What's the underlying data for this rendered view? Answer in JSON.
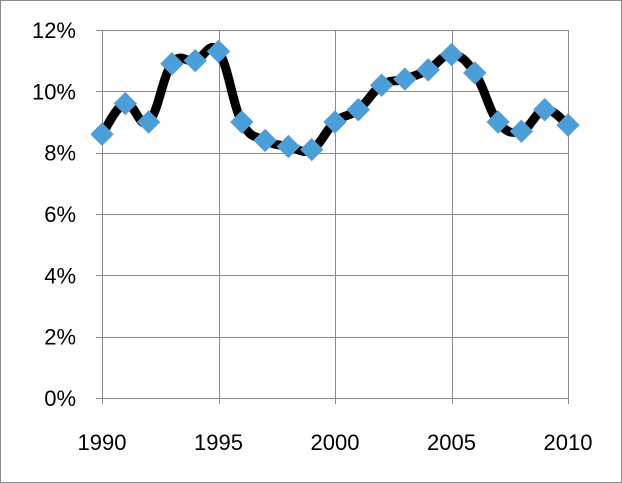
{
  "chart_data": {
    "type": "line",
    "title": "",
    "xlabel": "",
    "ylabel": "",
    "x": [
      1990,
      1991,
      1992,
      1993,
      1994,
      1995,
      1996,
      1997,
      1998,
      1999,
      2000,
      2001,
      2002,
      2003,
      2004,
      2005,
      2006,
      2007,
      2008,
      2009,
      2010
    ],
    "series": [
      {
        "values": [
          8.6,
          9.6,
          9.0,
          10.9,
          11.0,
          11.3,
          9.0,
          8.4,
          8.2,
          8.1,
          9.0,
          9.4,
          10.2,
          10.4,
          10.7,
          11.2,
          10.6,
          9.0,
          8.7,
          9.4,
          8.9
        ],
        "line_color": "#000000",
        "marker_color": "#4a9fd8",
        "marker": "diamond",
        "smooth": true
      }
    ],
    "xlim": [
      1990,
      2010
    ],
    "ylim": [
      0,
      12
    ],
    "x_ticks": [
      "1990",
      "1995",
      "2000",
      "2005",
      "2010"
    ],
    "y_ticks": [
      "0%",
      "2%",
      "4%",
      "6%",
      "8%",
      "10%",
      "12%"
    ],
    "grid": {
      "x": true,
      "y": true
    },
    "legend": "none",
    "colors": {
      "grid": "#8a8a8a",
      "border": "#8c8c8c"
    }
  }
}
